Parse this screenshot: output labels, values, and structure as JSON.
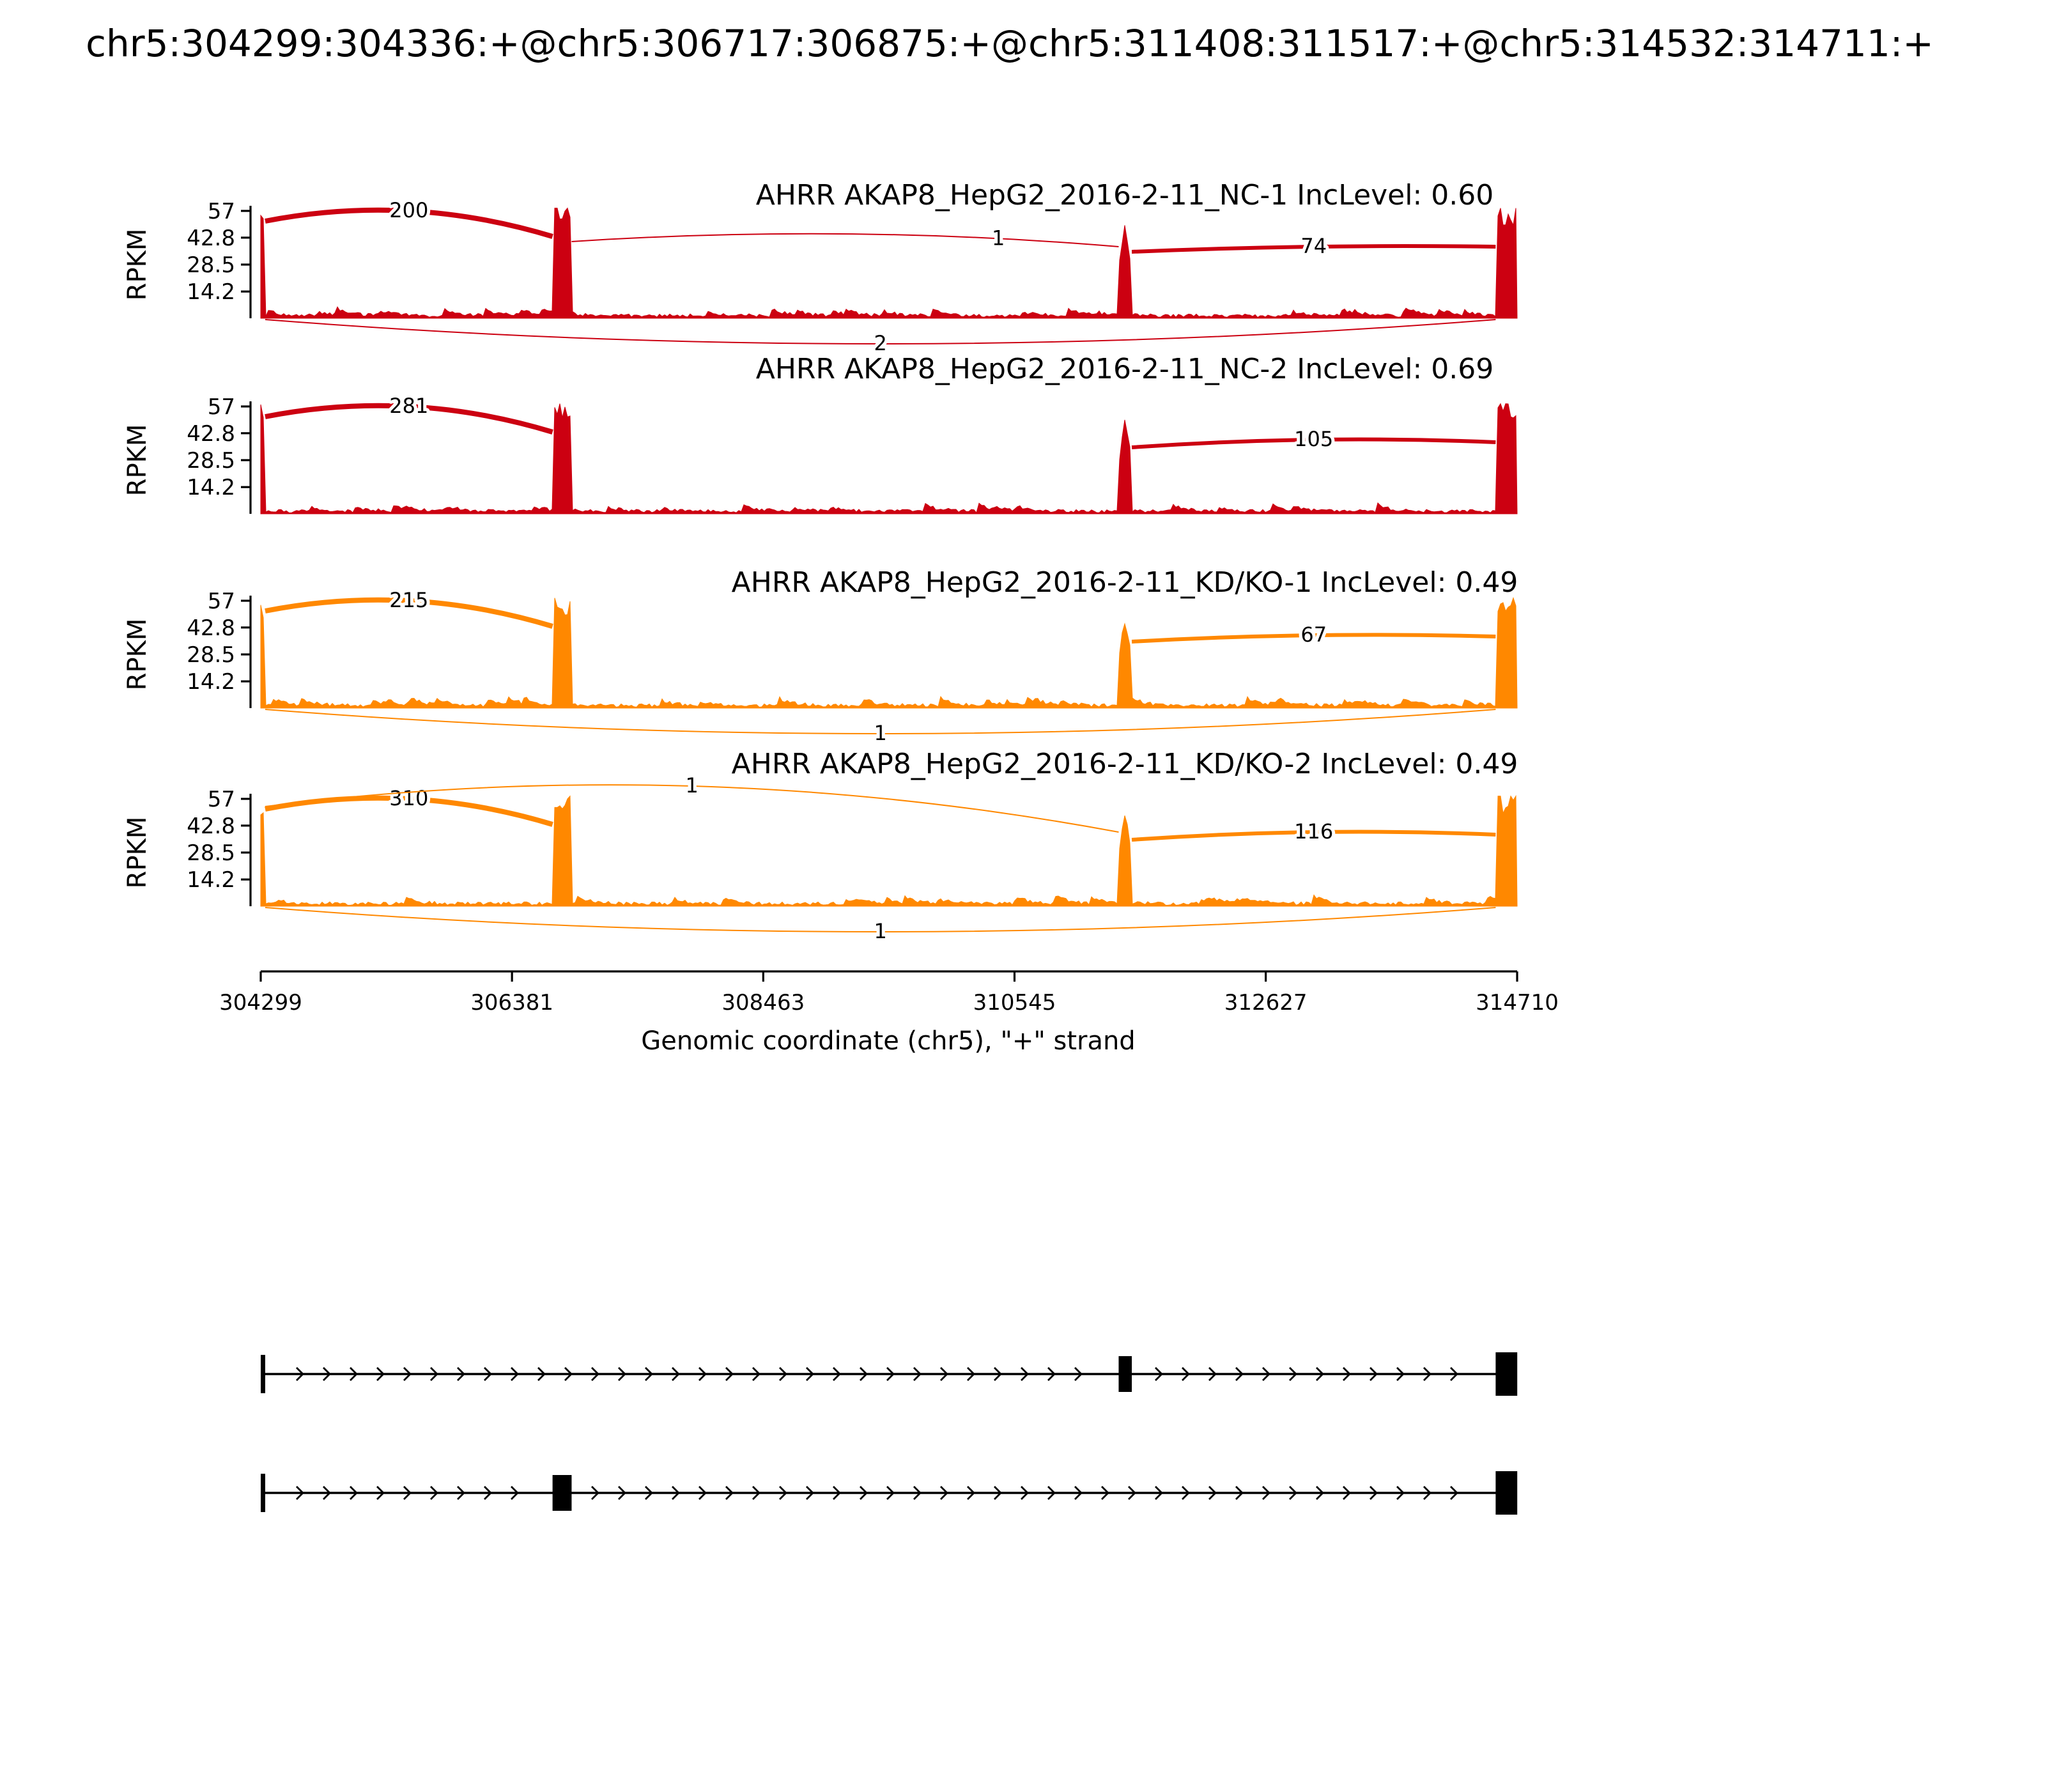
{
  "title": "chr5:304299:304336:+@chr5:306717:306875:+@chr5:311408:311517:+@chr5:314532:314711:+",
  "chart_data": {
    "type": "sashimi",
    "x_axis": {
      "label": "Genomic coordinate (chr5), \"+\" strand",
      "ticks": [
        "304299",
        "306381",
        "308463",
        "310545",
        "312627",
        "314710"
      ],
      "range": [
        304299,
        314710
      ]
    },
    "y_axis": {
      "label": "RPKM",
      "ticks": [
        "57",
        "42.8",
        "28.5",
        "14.2"
      ],
      "max": 57
    },
    "exons_genomic": [
      [
        304299,
        304336
      ],
      [
        306717,
        306875
      ],
      [
        311408,
        311517
      ],
      [
        314532,
        314711
      ]
    ],
    "tracks": [
      {
        "name": "AHRR AKAP8_HepG2_2016-2-11_NC-1 IncLevel: 0.60",
        "color": "#CC0011",
        "seed": 11,
        "exon_rpkm": [
          52,
          58,
          45,
          58
        ],
        "junctions": [
          {
            "from": 304336,
            "to": 306717,
            "count": "200",
            "side": "above",
            "h1": 76,
            "h2": 64,
            "peak": 84,
            "w": 4,
            "frac": 0.5
          },
          {
            "from": 306875,
            "to": 311408,
            "count": "1",
            "side": "above",
            "h1": 60,
            "h2": 56,
            "peak": 66,
            "w": 1,
            "frac": 0.78
          },
          {
            "from": 311517,
            "to": 314532,
            "count": "74",
            "side": "above",
            "h1": 52,
            "h2": 56,
            "peak": 56,
            "w": 3,
            "frac": 0.5
          },
          {
            "from": 304336,
            "to": 314532,
            "count": "2",
            "side": "below",
            "h1": -1,
            "h2": -1,
            "peak": -20,
            "w": 1,
            "frac": 0.5
          }
        ]
      },
      {
        "name": "AHRR AKAP8_HepG2_2016-2-11_NC-2 IncLevel: 0.69",
        "color": "#CC0011",
        "seed": 22,
        "exon_rpkm": [
          55,
          58,
          46,
          58
        ],
        "junctions": [
          {
            "from": 304336,
            "to": 306717,
            "count": "281",
            "side": "above",
            "h1": 76,
            "h2": 64,
            "peak": 84,
            "w": 4,
            "frac": 0.5
          },
          {
            "from": 311517,
            "to": 314532,
            "count": "105",
            "side": "above",
            "h1": 52,
            "h2": 56,
            "peak": 58,
            "w": 3,
            "frac": 0.5
          }
        ]
      },
      {
        "name": "AHRR AKAP8_HepG2_2016-2-11_KD/KO-1 IncLevel: 0.49",
        "color": "#FF8800",
        "seed": 33,
        "exon_rpkm": [
          52,
          58,
          44,
          58
        ],
        "junctions": [
          {
            "from": 304336,
            "to": 306717,
            "count": "215",
            "side": "above",
            "h1": 76,
            "h2": 64,
            "peak": 84,
            "w": 4,
            "frac": 0.5
          },
          {
            "from": 311517,
            "to": 314532,
            "count": "67",
            "side": "above",
            "h1": 52,
            "h2": 56,
            "peak": 57,
            "w": 3,
            "frac": 0.5
          },
          {
            "from": 304336,
            "to": 314532,
            "count": "1",
            "side": "below",
            "h1": -1,
            "h2": -1,
            "peak": -20,
            "w": 1,
            "frac": 0.5
          }
        ]
      },
      {
        "name": "AHRR AKAP8_HepG2_2016-2-11_KD/KO-2 IncLevel: 0.49",
        "color": "#FF8800",
        "seed": 44,
        "exon_rpkm": [
          55,
          58,
          46,
          58
        ],
        "junctions": [
          {
            "from": 304336,
            "to": 306717,
            "count": "310",
            "side": "above",
            "h1": 76,
            "h2": 64,
            "peak": 84,
            "w": 4,
            "frac": 0.5
          },
          {
            "from": 304336,
            "to": 311408,
            "count": "1",
            "side": "above",
            "h1": 78,
            "h2": 58,
            "peak": 94,
            "w": 1,
            "frac": 0.5
          },
          {
            "from": 311517,
            "to": 314532,
            "count": "116",
            "side": "above",
            "h1": 52,
            "h2": 56,
            "peak": 58,
            "w": 3,
            "frac": 0.5
          },
          {
            "from": 304336,
            "to": 314532,
            "count": "1",
            "side": "below",
            "h1": -1,
            "h2": -1,
            "peak": -20,
            "w": 1,
            "frac": 0.5
          }
        ]
      }
    ],
    "transcripts": [
      {
        "exon_indices": [
          0,
          2,
          3
        ]
      },
      {
        "exon_indices": [
          0,
          1,
          3
        ]
      }
    ]
  }
}
